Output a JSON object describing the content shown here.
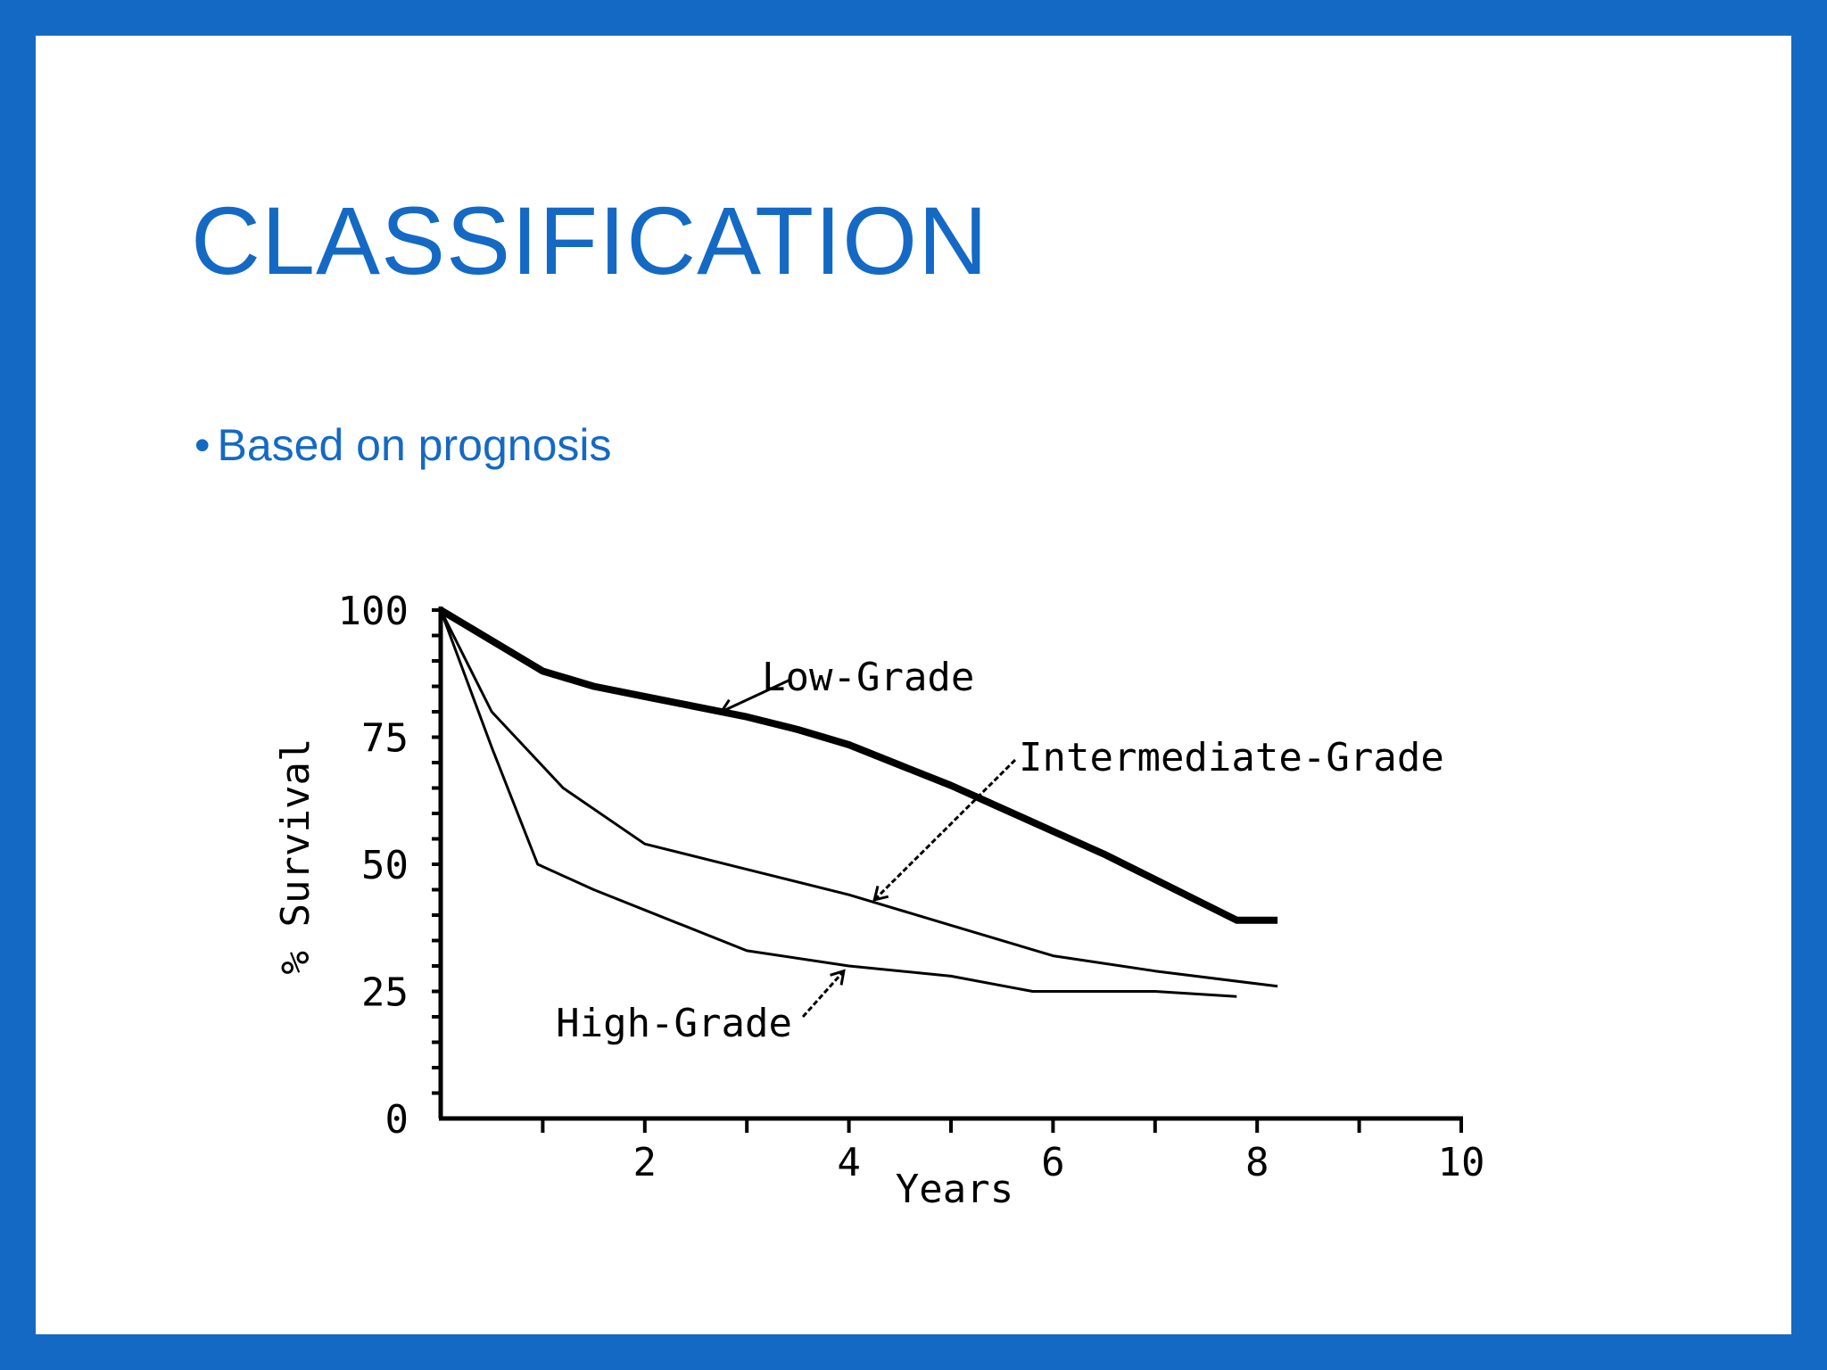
{
  "slide": {
    "title": "CLASSIFICATION",
    "bullet_marker": "•",
    "bullet_text": "Based on prognosis"
  },
  "colors": {
    "frame": "#1469c4",
    "title": "#1469c4",
    "chart_ink": "#000000"
  },
  "chart_data": {
    "type": "line",
    "xlabel": "Years",
    "ylabel": "% Survival",
    "xlim": [
      0,
      10
    ],
    "ylim": [
      0,
      100
    ],
    "x_ticks": [
      1,
      2,
      3,
      4,
      5,
      6,
      7,
      8,
      9,
      10
    ],
    "x_tick_labels": [
      {
        "value": 2,
        "label": "2"
      },
      {
        "value": 4,
        "label": "4"
      },
      {
        "value": 6,
        "label": "6"
      },
      {
        "value": 8,
        "label": "8"
      },
      {
        "value": 10,
        "label": "10"
      }
    ],
    "y_minor_ticks": [
      5,
      10,
      15,
      20,
      25,
      30,
      35,
      40,
      45,
      50,
      55,
      60,
      65,
      70,
      75,
      80,
      85,
      90,
      95,
      100
    ],
    "y_tick_labels": [
      {
        "value": 0,
        "label": "0"
      },
      {
        "value": 25,
        "label": "25"
      },
      {
        "value": 50,
        "label": "50"
      },
      {
        "value": 75,
        "label": "75"
      },
      {
        "value": 100,
        "label": "100"
      }
    ],
    "grid": false,
    "legend": "none",
    "series": [
      {
        "name": "Low-Grade",
        "x": [
          0,
          0.5,
          1,
          1.5,
          2,
          2.5,
          3,
          3.5,
          4,
          4.5,
          5,
          5.5,
          6,
          6.5,
          7,
          7.5,
          7.8,
          8.2
        ],
        "y": [
          100,
          94,
          88,
          85,
          83,
          81,
          79,
          76.5,
          73.5,
          69.5,
          65.5,
          61,
          56.5,
          52,
          47,
          42,
          39,
          39
        ]
      },
      {
        "name": "Intermediate-Grade",
        "x": [
          0,
          0.5,
          1.2,
          2,
          3,
          4,
          5,
          6,
          7,
          8.2
        ],
        "y": [
          100,
          80,
          65,
          54,
          49,
          44,
          38,
          32,
          29,
          26
        ]
      },
      {
        "name": "High-Grade",
        "x": [
          0,
          0.5,
          0.95,
          1.5,
          2,
          3,
          4,
          5,
          5.8,
          7,
          7.8
        ],
        "y": [
          100,
          73,
          50,
          45,
          41,
          33,
          30,
          28,
          25,
          25,
          24
        ]
      }
    ],
    "annotations": [
      {
        "text": "Low-Grade",
        "series": "Low-Grade",
        "x": 2.75,
        "y": 80
      },
      {
        "text": "Intermediate-Grade",
        "series": "Intermediate-Grade",
        "x": 4.25,
        "y": 43
      },
      {
        "text": "High-Grade",
        "series": "High-Grade",
        "x": 3.95,
        "y": 29
      }
    ]
  }
}
